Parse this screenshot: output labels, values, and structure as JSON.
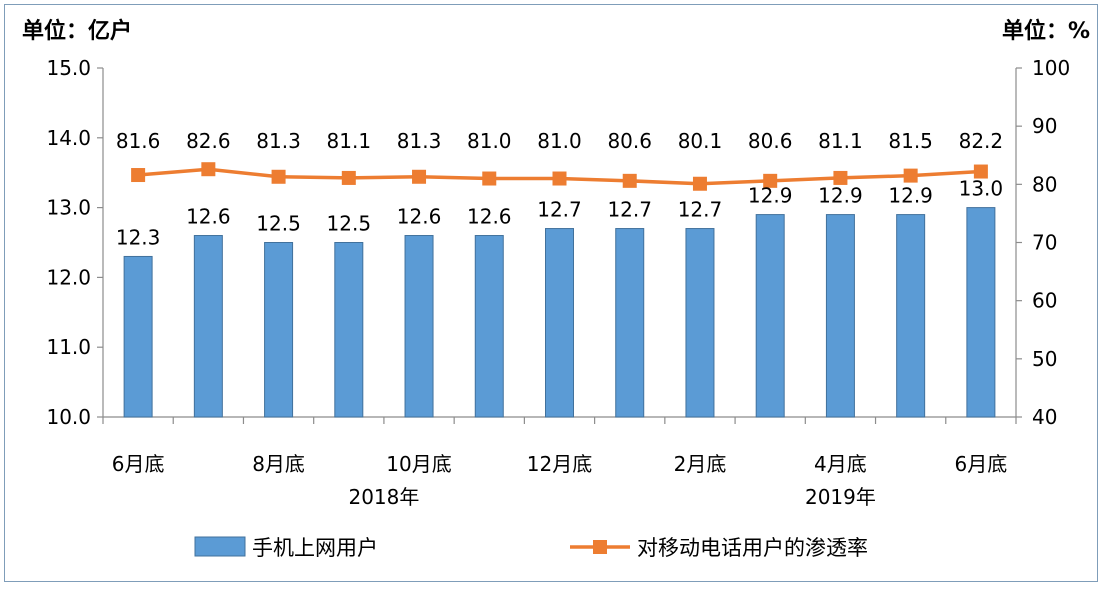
{
  "chart_data": {
    "type": "bar+line",
    "left_unit": "单位：亿户",
    "right_unit": "单位：%",
    "categories": [
      "6月底",
      "",
      "8月底",
      "",
      "10月底",
      "",
      "12月底",
      "",
      "2月底",
      "",
      "4月底",
      "",
      "6月底"
    ],
    "year_labels": [
      "2018年",
      "2019年"
    ],
    "left_ylim": [
      10.0,
      15.0
    ],
    "left_ticks": [
      "10.0",
      "11.0",
      "12.0",
      "13.0",
      "14.0",
      "15.0"
    ],
    "right_ylim": [
      40,
      100
    ],
    "right_ticks": [
      "40",
      "50",
      "60",
      "70",
      "80",
      "90",
      "100"
    ],
    "series": [
      {
        "name": "手机上网用户",
        "kind": "bar",
        "axis": "left",
        "color": "#5b9bd5",
        "values": [
          12.3,
          12.6,
          12.5,
          12.5,
          12.6,
          12.6,
          12.7,
          12.7,
          12.7,
          12.9,
          12.9,
          12.9,
          13.0
        ],
        "labels": [
          "12.3",
          "12.6",
          "12.5",
          "12.5",
          "12.6",
          "12.6",
          "12.7",
          "12.7",
          "12.7",
          "12.9",
          "12.9",
          "12.9",
          "13.0"
        ]
      },
      {
        "name": "对移动电话用户的渗透率",
        "kind": "line",
        "axis": "right",
        "color": "#ed7d31",
        "values": [
          81.6,
          82.6,
          81.3,
          81.1,
          81.3,
          81.0,
          81.0,
          80.6,
          80.1,
          80.6,
          81.1,
          81.5,
          82.2
        ],
        "labels": [
          "81.6",
          "82.6",
          "81.3",
          "81.1",
          "81.3",
          "81.0",
          "81.0",
          "80.6",
          "80.1",
          "80.6",
          "81.1",
          "81.5",
          "82.2"
        ]
      }
    ],
    "grid": false,
    "legend": "bottom"
  }
}
